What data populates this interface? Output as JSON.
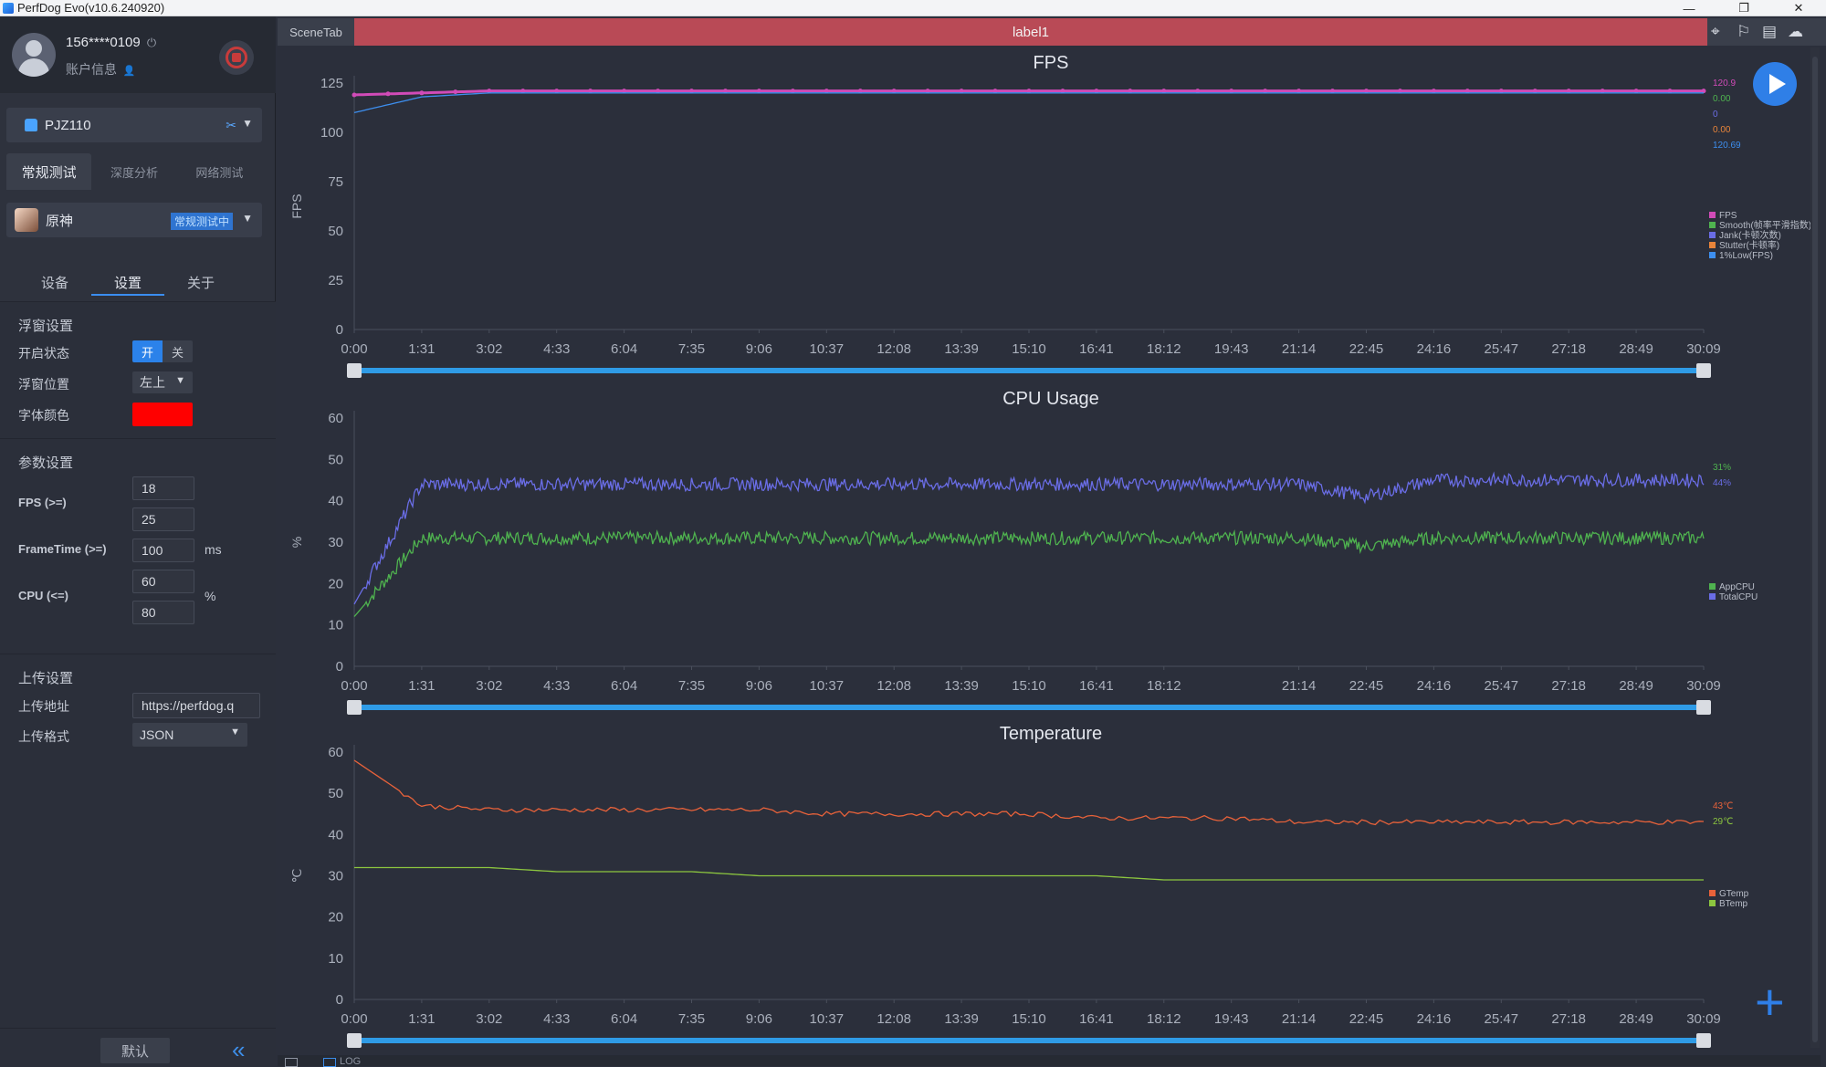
{
  "window": {
    "title": "PerfDog Evo(v10.6.240920)",
    "minimize": "—",
    "restore": "❐",
    "close": "✕"
  },
  "user": {
    "id": "156****0109",
    "power_icon": "⏻",
    "account_label": "账户信息",
    "account_icon": "👤"
  },
  "device": {
    "name": "PJZ110",
    "link_icon": "✂",
    "caret": "▼"
  },
  "test_tabs": [
    {
      "label": "常规测试"
    },
    {
      "label": "深度分析"
    },
    {
      "label": "网络测试"
    }
  ],
  "app": {
    "name": "原神",
    "status": "常规测试中",
    "caret": "▼"
  },
  "sub_tabs": [
    {
      "label": "设备"
    },
    {
      "label": "设置"
    },
    {
      "label": "关于"
    }
  ],
  "float_settings": {
    "title": "浮窗设置",
    "enable_label": "开启状态",
    "on": "开",
    "off": "关",
    "position_label": "浮窗位置",
    "position_value": "左上",
    "font_color_label": "字体颜色",
    "font_color": "#ff0000"
  },
  "param_settings": {
    "title": "参数设置",
    "fps_label": "FPS (>=)",
    "fps_values": [
      "18",
      "25"
    ],
    "frametime_label": "FrameTime (>=)",
    "frametime_value": "100",
    "frametime_unit": "ms",
    "cpu_label": "CPU (<=)",
    "cpu_values": [
      "60",
      "80"
    ],
    "cpu_unit": "%"
  },
  "upload_settings": {
    "title": "上传设置",
    "url_label": "上传地址",
    "url_value": "https://perfdog.q",
    "format_label": "上传格式",
    "format_value": "JSON"
  },
  "bottom_left": {
    "default_label": "默认",
    "collapse_icon": "«"
  },
  "scene": {
    "tab_label": "SceneTab",
    "label": "label1"
  },
  "header_icons": [
    "⌖",
    "⚐",
    "▤",
    "☁"
  ],
  "controls": {
    "add": "+"
  },
  "chart_data": [
    {
      "type": "line",
      "title": "FPS",
      "ylabel": "FPS",
      "ylim": [
        0,
        125
      ],
      "yticks": [
        0,
        25,
        50,
        75,
        100,
        125
      ],
      "xlim": [
        0,
        1809
      ],
      "xticks": [
        "0:00",
        "1:31",
        "3:02",
        "4:33",
        "6:04",
        "7:35",
        "9:06",
        "10:37",
        "12:08",
        "13:39",
        "15:10",
        "16:41",
        "18:12",
        "19:43",
        "21:14",
        "22:45",
        "24:16",
        "25:47",
        "27:18",
        "28:49",
        "30:09"
      ],
      "series": [
        {
          "name": "FPS",
          "color": "#d14bb8",
          "values": [
            119,
            120,
            121,
            121,
            121,
            121,
            121,
            121,
            121,
            121,
            121,
            121,
            121,
            121,
            121,
            121,
            121,
            121,
            121,
            121,
            121
          ]
        },
        {
          "name": "Smooth(帧率平滑指数)",
          "color": "#4fb34f",
          "values": []
        },
        {
          "name": "Jank(卡顿次数)",
          "color": "#6a6de6",
          "values": []
        },
        {
          "name": "Stutter(卡顿率)",
          "color": "#e8843a",
          "values": []
        },
        {
          "name": "1%Low(FPS)",
          "color": "#3d8ff0",
          "values": [
            110,
            118,
            120,
            120,
            120,
            120,
            120,
            120,
            120,
            120,
            120,
            120,
            120,
            120,
            120,
            120,
            120,
            120,
            120,
            120,
            120
          ]
        }
      ],
      "right_values": [
        {
          "text": "120.9",
          "color": "#d14bb8"
        },
        {
          "text": "0.00",
          "color": "#4fb34f"
        },
        {
          "text": "0",
          "color": "#6a6de6"
        },
        {
          "text": "0.00",
          "color": "#e8843a"
        },
        {
          "text": "120.69",
          "color": "#3d8ff0"
        }
      ]
    },
    {
      "type": "line",
      "title": "CPU Usage",
      "ylabel": "%",
      "ylim": [
        0,
        60
      ],
      "yticks": [
        0,
        10,
        20,
        30,
        40,
        50,
        60
      ],
      "xlim": [
        0,
        1809
      ],
      "xticks": [
        "0:00",
        "1:31",
        "3:02",
        "4:33",
        "6:04",
        "7:35",
        "9:06",
        "10:37",
        "12:08",
        "13:39",
        "15:10",
        "16:41",
        "18:12",
        "",
        "21:14",
        "22:45",
        "24:16",
        "25:47",
        "27:18",
        "28:49",
        "30:09"
      ],
      "series": [
        {
          "name": "AppCPU",
          "color": "#4fb34f",
          "base": [
            12,
            31,
            31,
            31,
            31,
            31,
            31,
            31,
            31,
            31,
            31,
            31,
            31,
            31,
            31,
            29,
            31,
            31,
            31,
            31,
            31
          ]
        },
        {
          "name": "TotalCPU",
          "color": "#6a6de6",
          "base": [
            15,
            44,
            44,
            44,
            44,
            44,
            44,
            44,
            44,
            44,
            44,
            44,
            44,
            44,
            44,
            41,
            45,
            45,
            45,
            45,
            45
          ]
        }
      ],
      "right_values": [
        {
          "text": "31%",
          "color": "#4fb34f"
        },
        {
          "text": "44%",
          "color": "#6a6de6"
        }
      ]
    },
    {
      "type": "line",
      "title": "Temperature",
      "ylabel": "℃",
      "ylim": [
        0,
        60
      ],
      "yticks": [
        0,
        10,
        20,
        30,
        40,
        50,
        60
      ],
      "xlim": [
        0,
        1809
      ],
      "xticks": [
        "0:00",
        "1:31",
        "3:02",
        "4:33",
        "6:04",
        "7:35",
        "9:06",
        "10:37",
        "12:08",
        "13:39",
        "15:10",
        "16:41",
        "18:12",
        "19:43",
        "21:14",
        "22:45",
        "24:16",
        "25:47",
        "27:18",
        "28:49",
        "30:09"
      ],
      "series": [
        {
          "name": "GTemp",
          "color": "#e8623a",
          "values": [
            58,
            47,
            46,
            46,
            46,
            46,
            46,
            45,
            45,
            45,
            45,
            44,
            44,
            44,
            43,
            43,
            43,
            43,
            43,
            43,
            43
          ]
        },
        {
          "name": "BTemp",
          "color": "#8cc63f",
          "values": [
            32,
            32,
            32,
            31,
            31,
            31,
            30,
            30,
            30,
            30,
            30,
            30,
            29,
            29,
            29,
            29,
            29,
            29,
            29,
            29,
            29
          ]
        }
      ],
      "right_values": [
        {
          "text": "43℃",
          "color": "#e8623a"
        },
        {
          "text": "29℃",
          "color": "#8cc63f"
        }
      ]
    }
  ],
  "bottom_bar": {
    "log_label": "LOG"
  }
}
